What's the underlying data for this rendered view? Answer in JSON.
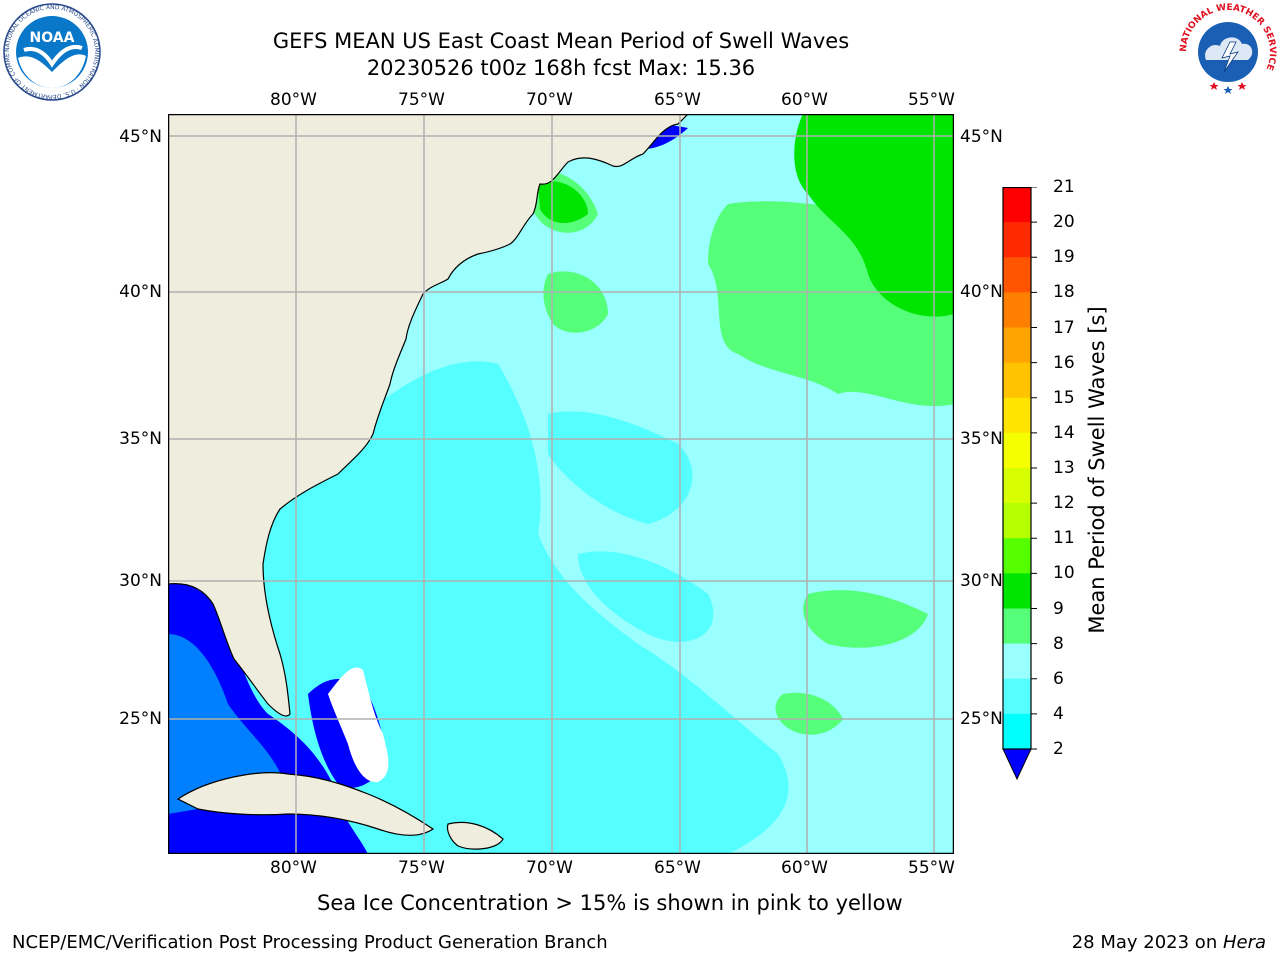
{
  "header": {
    "title": "GEFS MEAN US East Coast Mean Period of Swell Waves",
    "subtitle": "20230526 t00z 168h fcst   Max: 15.36"
  },
  "map": {
    "longitude_labels": [
      "80°W",
      "75°W",
      "70°W",
      "65°W",
      "60°W",
      "55°W"
    ],
    "latitude_labels": [
      "45°N",
      "40°N",
      "35°N",
      "30°N",
      "25°N"
    ],
    "colors": {
      "land": "#efedde",
      "gridline": "#b0b0b0",
      "coastline": "#000000"
    }
  },
  "colorbar": {
    "label": "Mean Period of Swell Waves [s]",
    "ticks": [
      "21",
      "20",
      "19",
      "18",
      "17",
      "16",
      "15",
      "14",
      "13",
      "12",
      "11",
      "10",
      "9",
      "8",
      "6",
      "4",
      "2"
    ],
    "colors": [
      "#ff0000",
      "#ff2a00",
      "#ff5500",
      "#ff7f00",
      "#ffa500",
      "#ffc300",
      "#ffe400",
      "#f5ff00",
      "#d7ff00",
      "#b4ff00",
      "#55ff00",
      "#00e500",
      "#55ff7a",
      "#99ffff",
      "#55ffff",
      "#00ffff",
      "#00e5ff",
      "#0080ff",
      "#0000ff"
    ]
  },
  "footer": {
    "note": "Sea Ice Concentration > 15% is shown in pink to yellow",
    "left": "NCEP/EMC/Verification Post Processing Product Generation Branch",
    "right_prefix": "28 May 2023 on ",
    "right_machine": "Hera"
  },
  "logos": {
    "noaa_text": "NOAA",
    "noaa_ring_text": "NATIONAL OCEANIC AND ATMOSPHERIC ADMINISTRATION · U.S. DEPARTMENT OF COMMERCE",
    "nws_ring_text": "NATIONAL WEATHER SERVICE"
  }
}
